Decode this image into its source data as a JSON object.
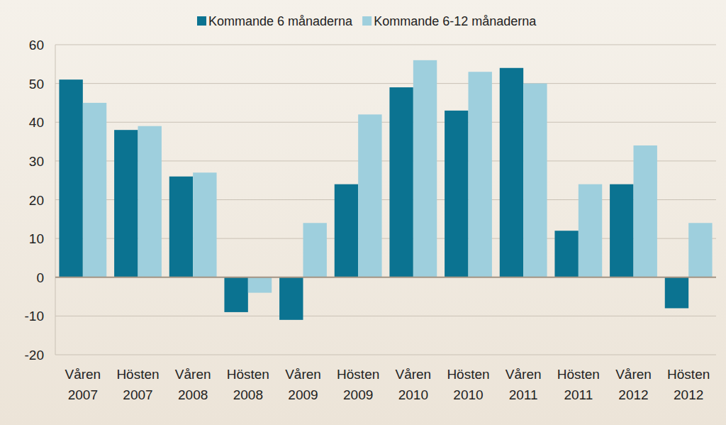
{
  "chart_data": {
    "type": "bar",
    "categories": [
      "Våren 2007",
      "Hösten 2007",
      "Våren 2008",
      "Hösten 2008",
      "Våren 2009",
      "Hösten 2009",
      "Våren 2010",
      "Hösten 2010",
      "Våren 2011",
      "Hösten 2011",
      "Våren 2012",
      "Hösten 2012"
    ],
    "series": [
      {
        "name": "Kommande 6 månaderna",
        "color": "#0b7391",
        "values": [
          51,
          38,
          26,
          -9,
          -11,
          24,
          49,
          43,
          54,
          12,
          24,
          -8
        ]
      },
      {
        "name": "Kommande 6-12 månaderna",
        "color": "#9ecfdd",
        "values": [
          45,
          39,
          27,
          -4,
          14,
          42,
          56,
          53,
          50,
          24,
          34,
          14
        ]
      }
    ],
    "ylim": [
      -20,
      60
    ],
    "yticks": [
      -20,
      -10,
      0,
      10,
      20,
      30,
      40,
      50,
      60
    ],
    "grid": true,
    "legend": "top"
  }
}
